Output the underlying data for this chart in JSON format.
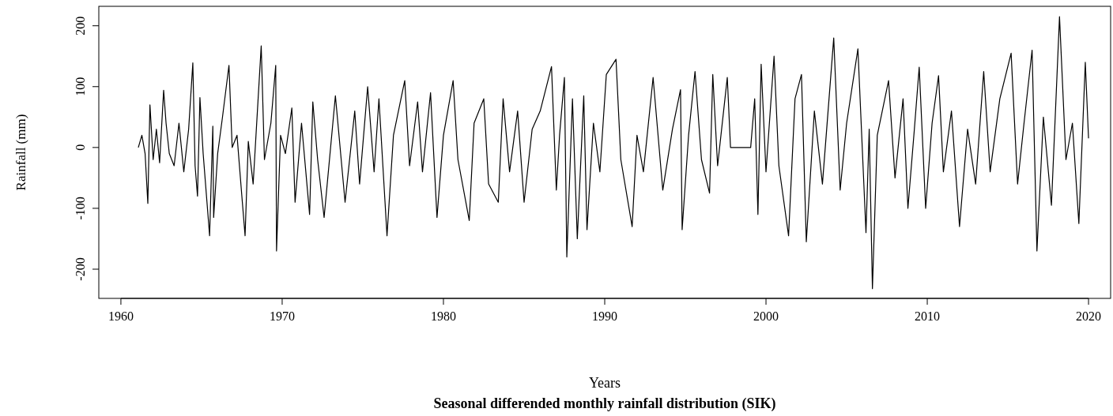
{
  "chart_data": {
    "type": "line",
    "title": "Seasonal differended monthly rainfall distribution (SIK)",
    "xlabel": "Years",
    "ylabel": "Rainfall (mm)",
    "xlim": [
      1958.63,
      2021.37
    ],
    "ylim": [
      -248,
      232
    ],
    "xticks": [
      1960,
      1970,
      1980,
      1990,
      2000,
      2010,
      2020
    ],
    "yticks": [
      -200,
      -100,
      0,
      100,
      200
    ],
    "marker": "none",
    "line_style": "solid",
    "series": [
      {
        "color": "#000000",
        "x": [
          1961.08,
          1961.3,
          1961.5,
          1961.67,
          1961.8,
          1962.0,
          1962.2,
          1962.4,
          1962.65,
          1962.8,
          1963.0,
          1963.3,
          1963.6,
          1963.9,
          1964.2,
          1964.46,
          1964.6,
          1964.75,
          1964.9,
          1965.1,
          1965.5,
          1965.7,
          1965.75,
          1966.0,
          1966.3,
          1966.7,
          1966.9,
          1967.2,
          1967.5,
          1967.7,
          1967.9,
          1968.2,
          1968.7,
          1968.9,
          1969.3,
          1969.6,
          1969.65,
          1969.9,
          1970.2,
          1970.6,
          1970.8,
          1971.2,
          1971.7,
          1971.9,
          1972.2,
          1972.6,
          1973.3,
          1973.9,
          1974.5,
          1974.8,
          1975.3,
          1975.7,
          1976.0,
          1976.5,
          1976.9,
          1977.6,
          1977.9,
          1978.4,
          1978.7,
          1979.2,
          1979.6,
          1980.0,
          1980.6,
          1980.9,
          1981.6,
          1981.9,
          1982.5,
          1982.8,
          1983.4,
          1983.7,
          1984.1,
          1984.6,
          1985.0,
          1985.5,
          1986.0,
          1986.7,
          1987.0,
          1987.2,
          1987.5,
          1987.65,
          1988.0,
          1988.3,
          1988.7,
          1988.9,
          1989.3,
          1989.7,
          1990.1,
          1990.7,
          1991.0,
          1991.7,
          1992.0,
          1992.4,
          1993.0,
          1993.6,
          1994.2,
          1994.7,
          1994.8,
          1995.2,
          1995.6,
          1996.0,
          1996.5,
          1996.7,
          1997.0,
          1997.6,
          1997.8,
          1999.05,
          1999.3,
          1999.5,
          1999.7,
          2000.0,
          2000.5,
          2000.8,
          2001.4,
          2001.8,
          2002.2,
          2002.5,
          2003.0,
          2003.5,
          2004.2,
          2004.6,
          2005.0,
          2005.7,
          2006.2,
          2006.4,
          2006.6,
          2006.9,
          2007.6,
          2008.0,
          2008.5,
          2008.8,
          2009.2,
          2009.5,
          2009.9,
          2010.3,
          2010.7,
          2011.0,
          2011.5,
          2012.0,
          2012.5,
          2013.0,
          2013.5,
          2013.9,
          2014.5,
          2015.2,
          2015.6,
          2016.0,
          2016.5,
          2016.8,
          2017.2,
          2017.7,
          2018.2,
          2018.6,
          2019.0,
          2019.4,
          2019.8,
          2020.0
        ],
        "values": [
          0,
          20,
          -10,
          -92,
          70,
          -20,
          30,
          -25,
          94,
          40,
          -10,
          -30,
          40,
          -40,
          30,
          139,
          -30,
          -80,
          82,
          -10,
          -145,
          35,
          -115,
          -10,
          50,
          135,
          0,
          20,
          -80,
          -145,
          10,
          -60,
          167,
          -20,
          40,
          135,
          -170,
          20,
          -10,
          65,
          -90,
          40,
          -110,
          75,
          -20,
          -115,
          85,
          -90,
          60,
          -60,
          100,
          -40,
          80,
          -145,
          20,
          110,
          -30,
          75,
          -40,
          90,
          -115,
          20,
          110,
          -20,
          -120,
          40,
          80,
          -60,
          -90,
          80,
          -40,
          60,
          -90,
          30,
          60,
          133,
          -70,
          20,
          115,
          -180,
          80,
          -150,
          85,
          -135,
          40,
          -40,
          120,
          145,
          -20,
          -130,
          20,
          -40,
          115,
          -70,
          30,
          95,
          -135,
          20,
          125,
          -20,
          -75,
          120,
          -30,
          115,
          0,
          0,
          80,
          -110,
          137,
          -40,
          150,
          -30,
          -145,
          80,
          120,
          -155,
          60,
          -60,
          180,
          -70,
          40,
          162,
          -140,
          30,
          -232,
          20,
          110,
          -50,
          80,
          -100,
          30,
          132,
          -100,
          40,
          118,
          -40,
          60,
          -130,
          30,
          -60,
          125,
          -40,
          80,
          155,
          -60,
          40,
          160,
          -170,
          50,
          -95,
          215,
          -20,
          40,
          -125,
          140,
          15
        ]
      }
    ]
  }
}
